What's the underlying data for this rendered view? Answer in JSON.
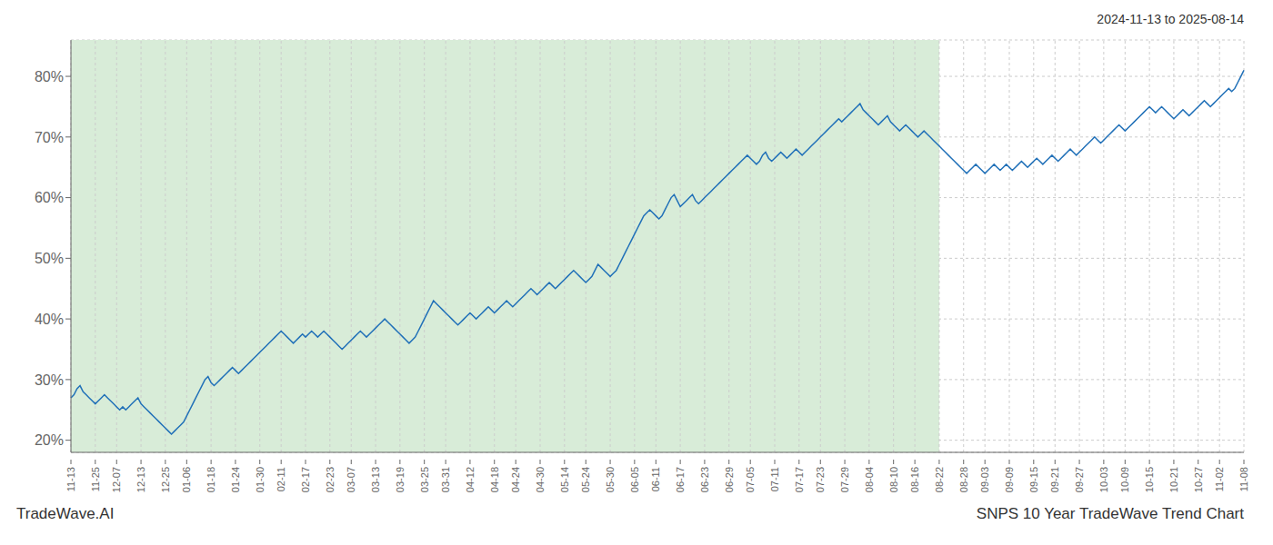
{
  "chart_data": {
    "type": "line",
    "title": "SNPS 10 Year TradeWave Trend Chart",
    "subtitle": "2024-11-13 to 2025-08-14",
    "annotations": [
      "TradeWave.AI"
    ],
    "color": "#2070b8",
    "ylim": [
      18,
      86
    ],
    "yticks": [
      {
        "value": 20,
        "label": "20%"
      },
      {
        "value": 30,
        "label": "30%"
      },
      {
        "value": 40,
        "label": "40%"
      },
      {
        "value": 50,
        "label": "50%"
      },
      {
        "value": 60,
        "label": "60%"
      },
      {
        "value": 70,
        "label": "70%"
      },
      {
        "value": 80,
        "label": "80%"
      }
    ],
    "grid": true,
    "shaded_region": {
      "start": "11-13",
      "end": "08-22",
      "color": "#d8ecd8"
    },
    "categories": [
      "11-13",
      null,
      null,
      null,
      null,
      null,
      null,
      null,
      "11-25",
      null,
      null,
      null,
      null,
      null,
      null,
      "12-07",
      null,
      null,
      null,
      null,
      null,
      null,
      null,
      "12-13",
      null,
      null,
      null,
      null,
      null,
      null,
      null,
      "12-25",
      null,
      null,
      null,
      null,
      null,
      null,
      "01-06",
      null,
      null,
      null,
      null,
      null,
      null,
      null,
      "01-18",
      null,
      null,
      null,
      null,
      null,
      null,
      null,
      "01-24",
      null,
      null,
      null,
      null,
      null,
      null,
      null,
      "01-30",
      null,
      null,
      null,
      null,
      null,
      null,
      "02-11",
      null,
      null,
      null,
      null,
      null,
      null,
      null,
      "02-17",
      null,
      null,
      null,
      null,
      null,
      null,
      null,
      "02-23",
      null,
      null,
      null,
      null,
      null,
      null,
      "03-07",
      null,
      null,
      null,
      null,
      null,
      null,
      null,
      "03-13",
      null,
      null,
      null,
      null,
      null,
      null,
      null,
      "03-19",
      null,
      null,
      null,
      null,
      null,
      null,
      null,
      "03-25",
      null,
      null,
      null,
      null,
      null,
      null,
      "03-31",
      null,
      null,
      null,
      null,
      null,
      null,
      null,
      "04-12",
      null,
      null,
      null,
      null,
      null,
      null,
      null,
      "04-18",
      null,
      null,
      null,
      null,
      null,
      null,
      "04-24",
      null,
      null,
      null,
      null,
      null,
      null,
      null,
      "04-30",
      null,
      null,
      null,
      null,
      null,
      null,
      null,
      "05-14",
      null,
      null,
      null,
      null,
      null,
      null,
      "05-24",
      null,
      null,
      null,
      null,
      null,
      null,
      null,
      "05-30",
      null,
      null,
      null,
      null,
      null,
      null,
      null,
      "06-05",
      null,
      null,
      null,
      null,
      null,
      null,
      "06-11",
      null,
      null,
      null,
      null,
      null,
      null,
      null,
      "06-17",
      null,
      null,
      null,
      null,
      null,
      null,
      null,
      "06-23",
      null,
      null,
      null,
      null,
      null,
      null,
      null,
      "06-29",
      null,
      null,
      null,
      null,
      null,
      null,
      "07-05",
      null,
      null,
      null,
      null,
      null,
      null,
      null,
      "07-11",
      null,
      null,
      null,
      null,
      null,
      null,
      null,
      "07-17",
      null,
      null,
      null,
      null,
      null,
      null,
      "07-23",
      null,
      null,
      null,
      null,
      null,
      null,
      null,
      "07-29",
      null,
      null,
      null,
      null,
      null,
      null,
      null,
      "08-04",
      null,
      null,
      null,
      null,
      null,
      null,
      null,
      "08-10",
      null,
      null,
      null,
      null,
      null,
      null,
      "08-16",
      null,
      null,
      null,
      null,
      null,
      null,
      null,
      "08-22",
      null,
      null,
      null,
      null,
      null,
      null,
      null,
      "08-28",
      null,
      null,
      null,
      null,
      null,
      null,
      "09-03",
      null,
      null,
      null,
      null,
      null,
      null,
      null,
      "09-09",
      null,
      null,
      null,
      null,
      null,
      null,
      null,
      "09-15",
      null,
      null,
      null,
      null,
      null,
      null,
      "09-21",
      null,
      null,
      null,
      null,
      null,
      null,
      null,
      "09-27",
      null,
      null,
      null,
      null,
      null,
      null,
      null,
      "10-03",
      null,
      null,
      null,
      null,
      null,
      null,
      "10-09",
      null,
      null,
      null,
      null,
      null,
      null,
      null,
      "10-15",
      null,
      null,
      null,
      null,
      null,
      null,
      null,
      "10-21",
      null,
      null,
      null,
      null,
      null,
      null,
      null,
      "10-27",
      null,
      null,
      null,
      null,
      null,
      null,
      "11-02",
      null,
      null,
      null,
      null,
      null,
      null,
      null,
      "11-08"
    ],
    "values": [
      27.0,
      27.5,
      28.5,
      29.0,
      28.0,
      27.5,
      27.0,
      26.5,
      26.0,
      26.5,
      27.0,
      27.5,
      27.0,
      26.5,
      26.0,
      25.5,
      25.0,
      25.5,
      25.0,
      25.5,
      26.0,
      26.5,
      27.0,
      26.0,
      25.5,
      25.0,
      24.5,
      24.0,
      23.5,
      23.0,
      22.5,
      22.0,
      21.5,
      21.0,
      21.5,
      22.0,
      22.5,
      23.0,
      24.0,
      25.0,
      26.0,
      27.0,
      28.0,
      29.0,
      30.0,
      30.5,
      29.5,
      29.0,
      29.5,
      30.0,
      30.5,
      31.0,
      31.5,
      32.0,
      31.5,
      31.0,
      31.5,
      32.0,
      32.5,
      33.0,
      33.5,
      34.0,
      34.5,
      35.0,
      35.5,
      36.0,
      36.5,
      37.0,
      37.5,
      38.0,
      37.5,
      37.0,
      36.5,
      36.0,
      36.5,
      37.0,
      37.5,
      37.0,
      37.5,
      38.0,
      37.5,
      37.0,
      37.5,
      38.0,
      37.5,
      37.0,
      36.5,
      36.0,
      35.5,
      35.0,
      35.5,
      36.0,
      36.5,
      37.0,
      37.5,
      38.0,
      37.5,
      37.0,
      37.5,
      38.0,
      38.5,
      39.0,
      39.5,
      40.0,
      39.5,
      39.0,
      38.5,
      38.0,
      37.5,
      37.0,
      36.5,
      36.0,
      36.5,
      37.0,
      38.0,
      39.0,
      40.0,
      41.0,
      42.0,
      43.0,
      42.5,
      42.0,
      41.5,
      41.0,
      40.5,
      40.0,
      39.5,
      39.0,
      39.5,
      40.0,
      40.5,
      41.0,
      40.5,
      40.0,
      40.5,
      41.0,
      41.5,
      42.0,
      41.5,
      41.0,
      41.5,
      42.0,
      42.5,
      43.0,
      42.5,
      42.0,
      42.5,
      43.0,
      43.5,
      44.0,
      44.5,
      45.0,
      44.5,
      44.0,
      44.5,
      45.0,
      45.5,
      46.0,
      45.5,
      45.0,
      45.5,
      46.0,
      46.5,
      47.0,
      47.5,
      48.0,
      47.5,
      47.0,
      46.5,
      46.0,
      46.5,
      47.0,
      48.0,
      49.0,
      48.5,
      48.0,
      47.5,
      47.0,
      47.5,
      48.0,
      49.0,
      50.0,
      51.0,
      52.0,
      53.0,
      54.0,
      55.0,
      56.0,
      57.0,
      57.5,
      58.0,
      57.5,
      57.0,
      56.5,
      57.0,
      58.0,
      59.0,
      60.0,
      60.5,
      59.5,
      58.5,
      59.0,
      59.5,
      60.0,
      60.5,
      59.5,
      59.0,
      59.5,
      60.0,
      60.5,
      61.0,
      61.5,
      62.0,
      62.5,
      63.0,
      63.5,
      64.0,
      64.5,
      65.0,
      65.5,
      66.0,
      66.5,
      67.0,
      66.5,
      66.0,
      65.5,
      66.0,
      67.0,
      67.5,
      66.5,
      66.0,
      66.5,
      67.0,
      67.5,
      67.0,
      66.5,
      67.0,
      67.5,
      68.0,
      67.5,
      67.0,
      67.5,
      68.0,
      68.5,
      69.0,
      69.5,
      70.0,
      70.5,
      71.0,
      71.5,
      72.0,
      72.5,
      73.0,
      72.5,
      73.0,
      73.5,
      74.0,
      74.5,
      75.0,
      75.5,
      74.5,
      74.0,
      73.5,
      73.0,
      72.5,
      72.0,
      72.5,
      73.0,
      73.5,
      72.5,
      72.0,
      71.5,
      71.0,
      71.5,
      72.0,
      71.5,
      71.0,
      70.5,
      70.0,
      70.5,
      71.0,
      70.5,
      70.0,
      69.5,
      69.0,
      68.5,
      68.0,
      67.5,
      67.0,
      66.5,
      66.0,
      65.5,
      65.0,
      64.5,
      64.0,
      64.5,
      65.0,
      65.5,
      65.0,
      64.5,
      64.0,
      64.5,
      65.0,
      65.5,
      65.0,
      64.5,
      65.0,
      65.5,
      65.0,
      64.5,
      65.0,
      65.5,
      66.0,
      65.5,
      65.0,
      65.5,
      66.0,
      66.5,
      66.0,
      65.5,
      66.0,
      66.5,
      67.0,
      66.5,
      66.0,
      66.5,
      67.0,
      67.5,
      68.0,
      67.5,
      67.0,
      67.5,
      68.0,
      68.5,
      69.0,
      69.5,
      70.0,
      69.5,
      69.0,
      69.5,
      70.0,
      70.5,
      71.0,
      71.5,
      72.0,
      71.5,
      71.0,
      71.5,
      72.0,
      72.5,
      73.0,
      73.5,
      74.0,
      74.5,
      75.0,
      74.5,
      74.0,
      74.5,
      75.0,
      74.5,
      74.0,
      73.5,
      73.0,
      73.5,
      74.0,
      74.5,
      74.0,
      73.5,
      74.0,
      74.5,
      75.0,
      75.5,
      76.0,
      75.5,
      75.0,
      75.5,
      76.0,
      76.5,
      77.0,
      77.5,
      78.0,
      77.5,
      78.0,
      79.0,
      80.0,
      81.0
    ]
  }
}
